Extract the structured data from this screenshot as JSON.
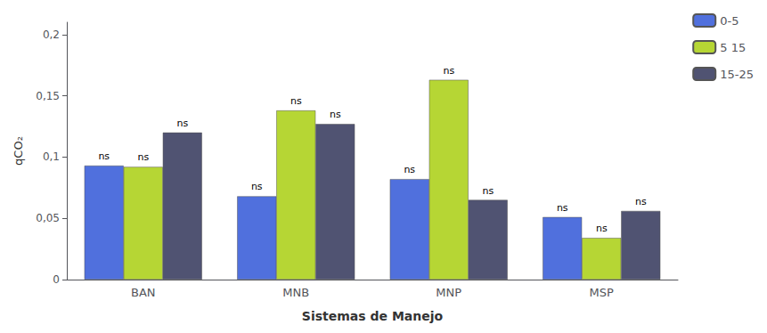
{
  "chart_data": {
    "type": "bar",
    "categories": [
      "BAN",
      "MNB",
      "MNP",
      "MSP"
    ],
    "series": [
      {
        "name": "0-5",
        "values": [
          0.093,
          0.068,
          0.082,
          0.051
        ],
        "annotations": [
          "ns",
          "ns",
          "ns",
          "ns"
        ]
      },
      {
        "name": "5 15",
        "values": [
          0.092,
          0.138,
          0.163,
          0.034
        ],
        "annotations": [
          "ns",
          "ns",
          "ns",
          "ns"
        ]
      },
      {
        "name": "15-25",
        "values": [
          0.12,
          0.127,
          0.065,
          0.056
        ],
        "annotations": [
          "ns",
          "ns",
          "ns",
          "ns"
        ]
      }
    ],
    "xlabel": "Sistemas de Manejo",
    "ylabel": "qCO₂",
    "ylim": [
      0,
      0.21
    ],
    "yticks": [
      0,
      {
        "value": 0.05,
        "label": "0,05"
      },
      {
        "value": 0.1,
        "label": "0,1"
      },
      {
        "value": 0.15,
        "label": "0,15"
      },
      {
        "value": 0.2,
        "label": "0,2"
      }
    ],
    "grid": false,
    "legend": "upper right"
  }
}
